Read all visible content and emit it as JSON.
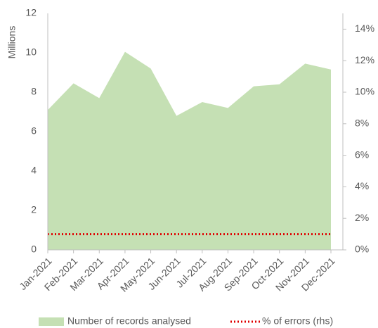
{
  "chart_data": {
    "type": "area",
    "y_label": "Millions",
    "categories": [
      "Jan-2021",
      "Feb-2021",
      "Mar-2021",
      "Apr-2021",
      "May-2021",
      "Jun-2021",
      "Jul-2021",
      "Aug-2021",
      "Sep-2021",
      "Oct-2021",
      "Nov-2021",
      "Dec-2021"
    ],
    "series": [
      {
        "name": "Number of records analysed",
        "color": "#c5e0b4",
        "type": "area",
        "values": [
          7.1,
          8.45,
          7.7,
          10.05,
          9.2,
          6.8,
          7.5,
          7.2,
          8.3,
          8.4,
          9.45,
          9.15
        ]
      },
      {
        "name": "% of errors (rhs)",
        "color": "#e00000",
        "type": "line",
        "axis": "y2",
        "values": [
          1.0,
          1.0,
          1.0,
          1.0,
          1.0,
          1.0,
          1.0,
          1.0,
          1.0,
          1.0,
          1.0,
          1.0
        ]
      }
    ],
    "ylim": [
      0,
      12
    ],
    "yticks": [
      0,
      2,
      4,
      6,
      8,
      10,
      12
    ],
    "y2lim": [
      0,
      15
    ],
    "y2ticks": [
      {
        "value": 0,
        "label": "0%"
      },
      {
        "value": 2,
        "label": "2%"
      },
      {
        "value": 4,
        "label": "4%"
      },
      {
        "value": 6,
        "label": "6%"
      },
      {
        "value": 8,
        "label": "8%"
      },
      {
        "value": 10,
        "label": "10%"
      },
      {
        "value": 12,
        "label": "12%"
      },
      {
        "value": 14,
        "label": "14%"
      }
    ],
    "legend": "bottom"
  }
}
